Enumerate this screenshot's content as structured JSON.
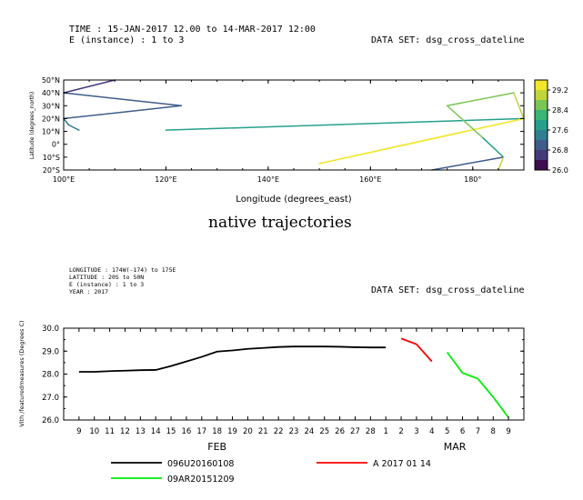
{
  "header1": {
    "time_line": "TIME : 15-JAN-2017 12.00 to 14-MAR-2017 12:00",
    "e_line": "E (instance) : 1 to 3",
    "dataset": "DATA SET: dsg_cross_dateline"
  },
  "middle_title": "native trajectories",
  "header2": {
    "lines": [
      "LONGITUDE : 174W(-174) to 175E",
      "LATITUDE : 20S to 50N",
      "E (instance) : 1 to 3",
      "YEAR : 2017"
    ],
    "dataset": "DATA SET: dsg_cross_dateline"
  },
  "colors": {
    "colorbar": [
      "#3b0f4f",
      "#453a7a",
      "#3f5c8a",
      "#2f7f8e",
      "#25a08b",
      "#3bb576",
      "#7ac655",
      "#c1d43a",
      "#f2e62a"
    ],
    "series": [
      "#000000",
      "#ff0000",
      "#00ee00"
    ]
  },
  "chart_data": [
    {
      "type": "line",
      "xlabel": "Longitude (degrees_east)",
      "ylabel": "Latitude (degrees_north)",
      "xlim": [
        100,
        190
      ],
      "ylim": [
        -20,
        50
      ],
      "x_ticks": [
        100,
        120,
        140,
        160,
        180
      ],
      "x_tick_labels": [
        "100°E",
        "120°E",
        "140°E",
        "160°E",
        "180°"
      ],
      "y_ticks": [
        -20,
        -10,
        0,
        10,
        20,
        30,
        40,
        50
      ],
      "y_tick_labels": [
        "20°S",
        "10°S",
        "0°",
        "10°N",
        "20°N",
        "30°N",
        "40°N",
        "50°N"
      ],
      "colorbar": {
        "range": [
          26.0,
          29.6
        ],
        "tick_values": [
          26.0,
          26.8,
          27.6,
          28.4,
          29.2
        ],
        "tick_labels": [
          "26.0",
          "26.8",
          "27.6",
          "28.4",
          "29.2"
        ]
      },
      "segments": [
        {
          "x1": 103,
          "y1": 11,
          "x2": 101,
          "y2": 15,
          "value": 27.4
        },
        {
          "x1": 101,
          "y1": 15,
          "x2": 100,
          "y2": 20,
          "value": 27.3
        },
        {
          "x1": 100,
          "y1": 20,
          "x2": 123,
          "y2": 30,
          "value": 27.2
        },
        {
          "x1": 123,
          "y1": 30,
          "x2": 100,
          "y2": 40,
          "value": 27.0
        },
        {
          "x1": 100,
          "y1": 40,
          "x2": 110,
          "y2": 50,
          "value": 26.5
        },
        {
          "x1": 120,
          "y1": 11,
          "x2": 190,
          "y2": 20,
          "value": 28.0
        },
        {
          "x1": 190,
          "y1": 20,
          "x2": 150,
          "y2": -15,
          "value": 29.4
        },
        {
          "x1": 150,
          "y1": -15,
          "x2": 190,
          "y2": 20,
          "value": 29.3
        },
        {
          "x1": 190,
          "y1": 20,
          "x2": 188,
          "y2": 40,
          "value": 29.0
        },
        {
          "x1": 188,
          "y1": 40,
          "x2": 175,
          "y2": 30,
          "value": 28.8
        },
        {
          "x1": 175,
          "y1": 30,
          "x2": 182,
          "y2": 5,
          "value": 28.6
        },
        {
          "x1": 182,
          "y1": 5,
          "x2": 186,
          "y2": -10,
          "value": 27.7
        },
        {
          "x1": 186,
          "y1": -10,
          "x2": 172,
          "y2": -20,
          "value": 27.2
        },
        {
          "x1": 186,
          "y1": -10,
          "x2": 185,
          "y2": -20,
          "value": 28.9
        }
      ]
    },
    {
      "type": "line",
      "ylabel": "Vith /featuredmeasures (Degrees C)",
      "ylim": [
        26.0,
        30.0
      ],
      "y_ticks": [
        26,
        27,
        28,
        29,
        30
      ],
      "y_tick_labels": [
        "26.0",
        "27.0",
        "28.0",
        "29.0",
        "30.0"
      ],
      "xlim": [
        0,
        30
      ],
      "x_ticks": [
        1,
        2,
        3,
        4,
        5,
        6,
        7,
        8,
        9,
        10,
        11,
        12,
        13,
        14,
        15,
        16,
        17,
        18,
        19,
        20,
        21,
        22,
        23,
        24,
        25,
        26,
        27,
        28,
        29
      ],
      "x_tick_labels": [
        "9",
        "10",
        "11",
        "12",
        "13",
        "14",
        "15",
        "16",
        "17",
        "18",
        "19",
        "20",
        "21",
        "22",
        "23",
        "24",
        "25",
        "26",
        "27",
        "28",
        "1",
        "2",
        "3",
        "4",
        "5",
        "6",
        "7",
        "8",
        "9"
      ],
      "month_labels": [
        {
          "label": "FEB",
          "x": 10
        },
        {
          "label": "MAR",
          "x": 25.5
        }
      ],
      "series": [
        {
          "name": "096U20160108",
          "x": [
            1,
            2,
            3,
            4,
            5,
            6,
            7,
            8,
            9,
            10,
            11,
            12,
            13,
            14,
            15,
            16,
            17,
            18,
            19,
            20,
            21
          ],
          "y": [
            28.1,
            28.1,
            28.13,
            28.15,
            28.17,
            28.18,
            28.35,
            28.55,
            28.75,
            28.98,
            29.03,
            29.1,
            29.14,
            29.18,
            29.2,
            29.2,
            29.2,
            29.19,
            29.17,
            29.16,
            29.16
          ]
        },
        {
          "name": "A 2017 01 14",
          "x": [
            22,
            23,
            24
          ],
          "y": [
            29.55,
            29.3,
            28.55
          ]
        },
        {
          "name": "09AR20151209",
          "x": [
            25,
            26,
            27,
            28,
            29
          ],
          "y": [
            28.95,
            28.05,
            27.8,
            27.0,
            26.1
          ]
        }
      ]
    }
  ]
}
